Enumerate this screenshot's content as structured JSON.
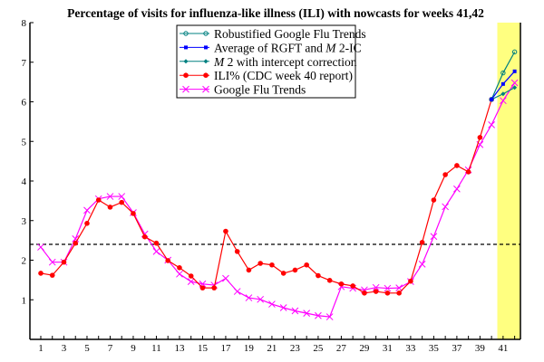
{
  "chart_data": {
    "type": "line",
    "title": "Percentage of visits for influenza-like illness (ILI) with nowcasts for weeks 41,42",
    "xlabel": "",
    "ylabel": "",
    "xlim": [
      0.06,
      42.5
    ],
    "ylim": [
      0,
      8
    ],
    "x_ticks": [
      1,
      3,
      5,
      7,
      9,
      11,
      13,
      15,
      17,
      19,
      21,
      23,
      25,
      27,
      29,
      31,
      33,
      35,
      37,
      39,
      41
    ],
    "y_ticks": [
      1,
      2,
      3,
      4,
      5,
      6,
      7,
      8
    ],
    "threshold_line": {
      "value": 2.4,
      "style": "dashed",
      "color": "#000000"
    },
    "highlight_band": {
      "from": 40.5,
      "to": 42.5,
      "color": "#ffff80"
    },
    "legend_position": "top-center",
    "series": [
      {
        "name": "Robustified Google Flu Trends",
        "label_parts": [
          "Robustified Google Flu Trends"
        ],
        "color": "#008080",
        "marker": "open-circle",
        "x": [
          40,
          41,
          42
        ],
        "values": [
          6.06,
          6.73,
          7.26
        ]
      },
      {
        "name": "Average of RGFT and M 2-IC",
        "label_parts": [
          "Average of RGFT and ",
          "M",
          " 2-IC"
        ],
        "color": "#0000ff",
        "marker": "square",
        "x": [
          40,
          41,
          42
        ],
        "values": [
          6.06,
          6.45,
          6.77
        ]
      },
      {
        "name": "M 2 with intercept correction",
        "label_parts": [
          "",
          "M",
          " 2 with intercept correction"
        ],
        "color": "#008080",
        "marker": "diamond",
        "x": [
          40,
          41,
          42
        ],
        "values": [
          6.06,
          6.2,
          6.36
        ]
      },
      {
        "name": "ILI% (CDC week 40 report)",
        "label_parts": [
          "ILI% (CDC week 40 report)"
        ],
        "color": "#ff0000",
        "marker": "dot",
        "x": [
          1,
          2,
          3,
          4,
          5,
          6,
          7,
          8,
          9,
          10,
          11,
          12,
          13,
          14,
          15,
          16,
          17,
          18,
          19,
          20,
          21,
          22,
          23,
          24,
          25,
          26,
          27,
          28,
          29,
          30,
          31,
          32,
          33,
          34,
          35,
          36,
          37,
          38,
          39,
          40
        ],
        "values": [
          1.67,
          1.62,
          1.95,
          2.43,
          2.93,
          3.52,
          3.34,
          3.46,
          3.18,
          2.59,
          2.43,
          1.99,
          1.81,
          1.6,
          1.3,
          1.3,
          2.73,
          2.22,
          1.75,
          1.92,
          1.88,
          1.67,
          1.75,
          1.88,
          1.61,
          1.49,
          1.4,
          1.35,
          1.17,
          1.21,
          1.17,
          1.17,
          1.47,
          2.45,
          3.52,
          4.16,
          4.39,
          4.23,
          5.1,
          6.06
        ]
      },
      {
        "name": "Google Flu Trends",
        "label_parts": [
          "Google Flu Trends"
        ],
        "color": "#ff00ff",
        "marker": "x",
        "x": [
          1,
          2,
          3,
          4,
          5,
          6,
          7,
          8,
          9,
          10,
          11,
          12,
          13,
          14,
          15,
          16,
          17,
          18,
          19,
          20,
          21,
          22,
          23,
          24,
          25,
          26,
          27,
          28,
          29,
          30,
          31,
          32,
          33,
          34,
          35,
          36,
          37,
          38,
          39,
          40,
          41,
          42
        ],
        "values": [
          2.33,
          1.95,
          1.95,
          2.54,
          3.26,
          3.55,
          3.61,
          3.61,
          3.2,
          2.66,
          2.22,
          2.0,
          1.65,
          1.46,
          1.4,
          1.37,
          1.54,
          1.21,
          1.05,
          1.01,
          0.89,
          0.8,
          0.72,
          0.66,
          0.6,
          0.57,
          1.33,
          1.29,
          1.25,
          1.31,
          1.29,
          1.3,
          1.46,
          1.9,
          2.6,
          3.35,
          3.8,
          4.28,
          4.92,
          5.42,
          6.03,
          6.48
        ]
      }
    ]
  }
}
